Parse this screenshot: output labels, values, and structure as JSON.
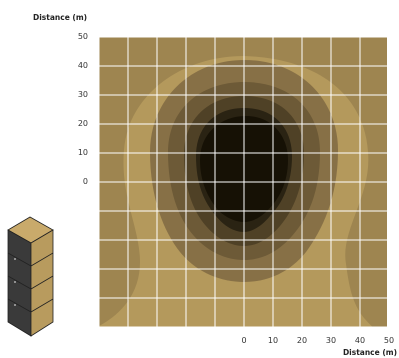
{
  "y_axis": {
    "title": "Distance (m)",
    "ticks": [
      "50",
      "40",
      "30",
      "20",
      "10",
      "0"
    ]
  },
  "x_axis": {
    "title": "Distance (m)",
    "ticks": [
      "0",
      "10",
      "20",
      "30",
      "40",
      "50"
    ]
  },
  "colors": {
    "contour_levels": [
      "#b4995c",
      "#9e8550",
      "#877046",
      "#6d5a37",
      "#4f4126",
      "#2a2313",
      "#161105"
    ],
    "grid_line": "#ffffff",
    "storage_block_top": "#c9aa6b",
    "storage_block_front": "#b89b5e",
    "storage_block_side": "#3a3a3a"
  },
  "icons": [
    "storage-block-icon"
  ]
}
